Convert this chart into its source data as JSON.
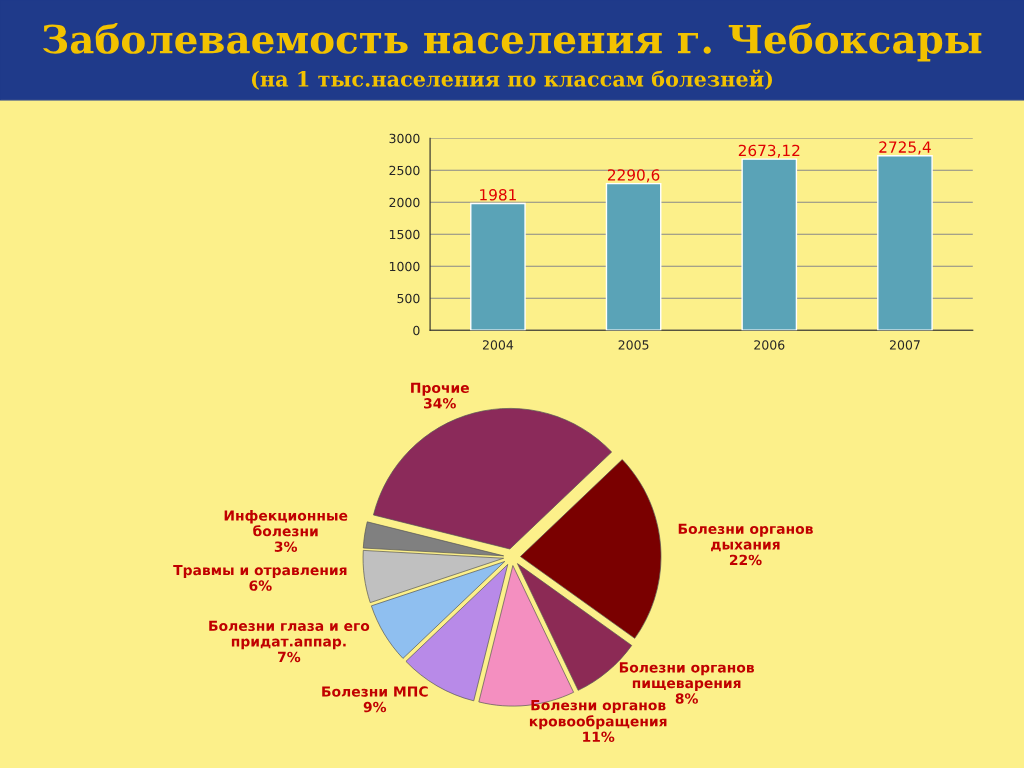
{
  "chart_data": [
    {
      "type": "bar",
      "title": "Заболеваемость населения г. Чебоксары",
      "subtitle": "(на 1 тыс.населения по классам болезней)",
      "categories": [
        "2004",
        "2005",
        "2006",
        "2007"
      ],
      "values": [
        1981,
        2290.6,
        2673.12,
        2725.4
      ],
      "value_labels": [
        "1981",
        "2290,6",
        "2673,12",
        "2725,4"
      ],
      "color": "#4bacc6",
      "ylim": [
        0,
        3000
      ],
      "yticks": [
        0,
        500,
        1000,
        1500,
        2000,
        2500,
        3000
      ],
      "grid": "y"
    },
    {
      "type": "pie",
      "categories": [
        "Прочие",
        "Болезни органов\nдыхания",
        "Болезни органов\nпищеварения",
        "Болезни органов\nкровообращения",
        "Болезни МПС",
        "Болезни глаза и его\nпридат.аппар.",
        "Травмы и отравления",
        "Инфекционные\nболезни"
      ],
      "values": [
        34,
        22,
        8,
        11,
        9,
        7,
        6,
        3
      ],
      "value_labels": [
        "34%",
        "22%",
        "8%",
        "11%",
        "9%",
        "7%",
        "6%",
        "3%"
      ],
      "colors": [
        "#8b2a5a",
        "#7a0000",
        "#8c2a55",
        "#f48fc0",
        "#b88ae8",
        "#8fbff0",
        "#c0c0c0",
        "#808080"
      ]
    }
  ]
}
